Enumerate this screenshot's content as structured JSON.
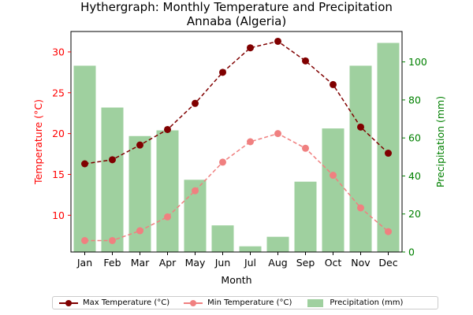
{
  "chart_data": {
    "type": "bar+line",
    "title": "Hythergraph: Monthly Temperature and Precipitation",
    "subtitle": "Annaba (Algeria)",
    "xlabel": "Month",
    "ylabel_left": "Temperature (°C)",
    "ylabel_right": "Precipitation (mm)",
    "categories": [
      "Jan",
      "Feb",
      "Mar",
      "Apr",
      "May",
      "Jun",
      "Jul",
      "Aug",
      "Sep",
      "Oct",
      "Nov",
      "Dec"
    ],
    "ylim_left": [
      5.5,
      32.5
    ],
    "yticks_left": [
      10,
      15,
      20,
      25,
      30
    ],
    "ylim_right": [
      0,
      116
    ],
    "yticks_right": [
      0,
      20,
      40,
      60,
      80,
      100
    ],
    "series": [
      {
        "name": "Max Temperature (°C)",
        "axis": "left",
        "kind": "line",
        "color": "#800000",
        "linestyle": "dashed",
        "values": [
          16.3,
          16.8,
          18.6,
          20.5,
          23.7,
          27.5,
          30.5,
          31.3,
          28.9,
          26.0,
          20.8,
          17.6
        ]
      },
      {
        "name": "Min Temperature (°C)",
        "axis": "left",
        "kind": "line",
        "color": "#f08080",
        "linestyle": "dashed",
        "values": [
          6.9,
          6.9,
          8.1,
          9.8,
          13.0,
          16.5,
          19.0,
          20.0,
          18.2,
          14.9,
          10.9,
          8.0
        ]
      },
      {
        "name": "Precipitation (mm)",
        "axis": "right",
        "kind": "bar",
        "color": "#9fd09f",
        "values": [
          98,
          76,
          61,
          64,
          38,
          14,
          3,
          8,
          37,
          65,
          98,
          110
        ]
      }
    ],
    "left_axis_color": "#ff0000",
    "right_axis_color": "#008000",
    "legend_position": "bottom-center",
    "grid": false
  },
  "legend": {
    "max_label": "Max Temperature (°C)",
    "min_label": "Min Temperature (°C)",
    "precip_label": "Precipitation (mm)"
  }
}
